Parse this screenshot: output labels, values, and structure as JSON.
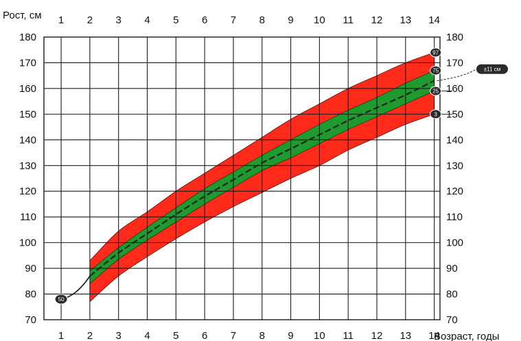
{
  "chart_data": {
    "type": "area",
    "ylabel": "Рост, см",
    "xlabel": "Возраст, годы",
    "x_ticks": [
      1,
      2,
      3,
      4,
      5,
      6,
      7,
      8,
      9,
      10,
      11,
      12,
      13,
      14
    ],
    "y_ticks": [
      70,
      80,
      90,
      100,
      110,
      120,
      130,
      140,
      150,
      160,
      170,
      180
    ],
    "xlim": [
      0.4,
      14.2
    ],
    "ylim": [
      70,
      180
    ],
    "grid": true,
    "colors": {
      "outer_band": "#ff2a1a",
      "inner_band": "#1e9a2e",
      "median_line": "#222222",
      "grid": "#1a1a1a",
      "badge": "#2a2a2a"
    },
    "x": [
      2,
      3,
      4,
      5,
      6,
      7,
      8,
      9,
      10,
      11,
      12,
      13,
      14
    ],
    "percentiles": [
      {
        "label": "97",
        "values": [
          93,
          104.5,
          112,
          120,
          127,
          134,
          141,
          148,
          154,
          160,
          165,
          170,
          174
        ]
      },
      {
        "label": "75",
        "values": [
          89,
          98,
          106,
          113.5,
          121,
          127.5,
          134,
          140,
          146,
          151.5,
          156.5,
          162,
          167
        ]
      },
      {
        "label": "50",
        "values": [
          87,
          96,
          103.5,
          111,
          118,
          124.5,
          131,
          136.5,
          142,
          147.5,
          152.5,
          157.5,
          163
        ]
      },
      {
        "label": "25",
        "values": [
          84,
          93.5,
          101,
          108,
          115,
          121.5,
          128,
          133,
          138.5,
          144,
          149,
          154,
          159
        ]
      },
      {
        "label": "3",
        "values": [
          77,
          87,
          94.5,
          101.5,
          108,
          114,
          119.5,
          125,
          130,
          136,
          141,
          146,
          150
        ]
      }
    ],
    "start_point": {
      "label": "50",
      "x": 1,
      "y": 78
    },
    "callout": {
      "text": "±11 см",
      "x": 14,
      "y": 163
    }
  }
}
